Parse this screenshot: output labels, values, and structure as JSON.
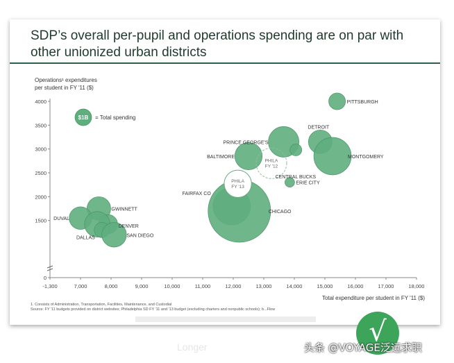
{
  "title": "SDP’s overall per-pupil and operations spending are on par with other unionized urban districts",
  "chart_data": {
    "type": "bubble",
    "ylabel": "Operations¹ expenditures per student in FY '11 ($)",
    "xlabel": "Total expenditure per student in FY '11 ($)",
    "x_ticks": [
      "-1,300",
      "7,000",
      "8,000",
      "9,000",
      "10,000",
      "11,000",
      "12,000",
      "13,000",
      "14,000",
      "15,000",
      "16,000",
      "17,000",
      "18,000"
    ],
    "y_ticks": [
      "0",
      "1500",
      "2000",
      "2500",
      "3000",
      "3500",
      "4000"
    ],
    "legend": {
      "bubble_label": "$1B",
      "text": "= Total spending"
    },
    "bubble_color": "#5fae7e",
    "points": [
      {
        "label": "PITTSBURGH",
        "x": 15400,
        "y": 4000,
        "size": 0.3
      },
      {
        "label": "DETROIT",
        "x": 14850,
        "y": 3150,
        "size": 0.6
      },
      {
        "label": "PRINCE GEORGE'S",
        "x": 13650,
        "y": 3150,
        "size": 1.0
      },
      {
        "label": "",
        "x": 14050,
        "y": 2980,
        "size": 0.15
      },
      {
        "label": "MONTGOMERY",
        "x": 15250,
        "y": 2850,
        "size": 1.5
      },
      {
        "label": "BALTIMORE",
        "x": 12500,
        "y": 2850,
        "size": 0.8
      },
      {
        "label": "PHILA FY '12",
        "x": 13250,
        "y": 2700,
        "size": 1.0,
        "style": "dashed"
      },
      {
        "label": "CENTRAL BUCKS",
        "x": 13650,
        "y": 2500,
        "size": 0
      },
      {
        "label": "ERIE CITY",
        "x": 13850,
        "y": 2300,
        "size": 0.1
      },
      {
        "label": "PHILA FY '13",
        "x": 12150,
        "y": 2270,
        "size": 0.8,
        "style": "outline"
      },
      {
        "label": "FAIRFAX CO",
        "x": 11950,
        "y": 1800,
        "size": 1.5
      },
      {
        "label": "CHICAGO",
        "x": 12200,
        "y": 1700,
        "size": 4.2
      },
      {
        "label": "GWINNETT",
        "x": 7600,
        "y": 1750,
        "size": 0.6
      },
      {
        "label": "DUVAL",
        "x": 7000,
        "y": 1550,
        "size": 0.55
      },
      {
        "label": "DENVER",
        "x": 7900,
        "y": 1420,
        "size": 0.4
      },
      {
        "label": "",
        "x": 7550,
        "y": 1420,
        "size": 0.7
      },
      {
        "label": "DALLAS",
        "x": 7700,
        "y": 1300,
        "size": 0.25
      },
      {
        "label": "SAN DIEGO",
        "x": 8100,
        "y": 1200,
        "size": 0.65
      }
    ]
  },
  "footnote": {
    "line1": "1. Consists of Administration, Transportation, Facilities, Maintenance, and Custodial",
    "line2": "Source: FY '11 budgets provided on district websites; Philadelphia SD FY '11 and '13 budget (excluding charters and nonpublic schools); b...Flow"
  },
  "watermark": "头条 @VOYAGE泛远求职",
  "badge_glyph": "√",
  "ghost_text": "Longer"
}
